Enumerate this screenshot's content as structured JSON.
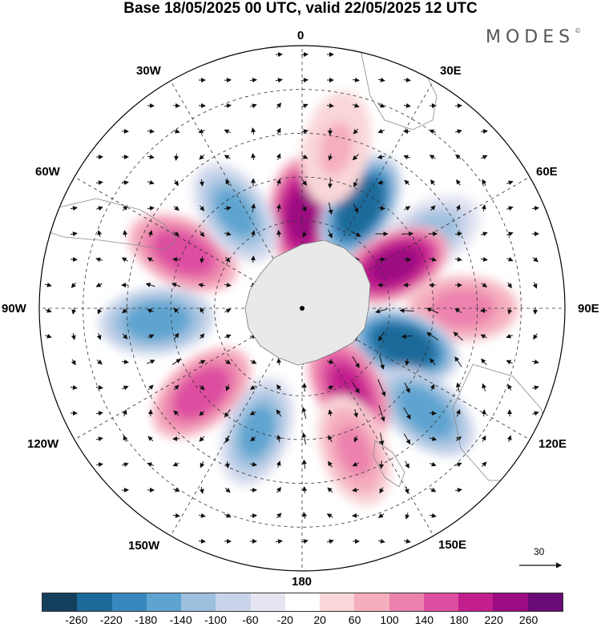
{
  "title": "Base 18/05/2025 00 UTC, valid 22/05/2025 12 UTC",
  "brand": "MODES",
  "brand_mark": "©",
  "longitude_labels": {
    "lon_0": "0",
    "lon_30e": "30E",
    "lon_60e": "60E",
    "lon_90e": "90E",
    "lon_120e": "120E",
    "lon_150e": "150E",
    "lon_180": "180",
    "lon_150w": "150W",
    "lon_120w": "120W",
    "lon_90w": "90W",
    "lon_60w": "60W",
    "lon_30w": "30W"
  },
  "reference_vector": "30",
  "colorbar": {
    "colors": [
      "#14405e",
      "#1d6a9a",
      "#3888bf",
      "#5ea4d0",
      "#9cc0de",
      "#c9d4ea",
      "#e6e6f3",
      "#ffffff",
      "#f9d6d8",
      "#f5aebe",
      "#ec82ad",
      "#dd4ea0",
      "#c21f8d",
      "#9c0b82",
      "#6a0a76"
    ],
    "ticks": [
      "-260",
      "-220",
      "-180",
      "-140",
      "-100",
      "-60",
      "-20",
      "20",
      "60",
      "100",
      "140",
      "180",
      "220",
      "260"
    ]
  },
  "anomaly_centers": [
    {
      "lon": 0,
      "lat": -58,
      "value": 240
    },
    {
      "lon": 30,
      "lat": -50,
      "value": -260
    },
    {
      "lon": 60,
      "lat": -40,
      "value": -120
    },
    {
      "lon": 65,
      "lat": -55,
      "value": 250
    },
    {
      "lon": 90,
      "lat": -35,
      "value": 120
    },
    {
      "lon": 110,
      "lat": -53,
      "value": -260
    },
    {
      "lon": 130,
      "lat": -35,
      "value": -170
    },
    {
      "lon": 150,
      "lat": -58,
      "value": 200
    },
    {
      "lon": 160,
      "lat": -38,
      "value": 110
    },
    {
      "lon": -160,
      "lat": -45,
      "value": -150
    },
    {
      "lon": -130,
      "lat": -45,
      "value": 160
    },
    {
      "lon": -95,
      "lat": -40,
      "value": -170
    },
    {
      "lon": -65,
      "lat": -45,
      "value": 160
    },
    {
      "lon": -35,
      "lat": -50,
      "value": -160
    },
    {
      "lon": 12,
      "lat": -34,
      "value": 60
    }
  ]
}
